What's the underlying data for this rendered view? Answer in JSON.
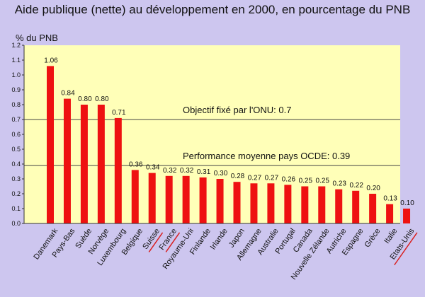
{
  "chart_data": {
    "type": "bar",
    "title": "Aide publique (nette) au développement en 2000, en pourcentage du PNB",
    "ylabel": "% du PNB",
    "xlabel": "",
    "ylim": [
      0,
      1.2
    ],
    "yticks": [
      "0.0",
      "0.1",
      "0.2",
      "0.3",
      "0.4",
      "0.5",
      "0.6",
      "0.7",
      "0.8",
      "0.9",
      "1.0",
      "1.1",
      "1.2"
    ],
    "categories": [
      "Danemark",
      "Pays-Bas",
      "Suède",
      "Norvège",
      "Luxembourg",
      "Belgique",
      "Suisse",
      "France",
      "Royaume-Uni",
      "Finlande",
      "Irlande",
      "Japon",
      "Allemagne",
      "Australie",
      "Portugal",
      "Canada",
      "Nouvelle Zélande",
      "Autriche",
      "Espagne",
      "Grèce",
      "Italie",
      "Etats-Unis"
    ],
    "underlined_categories": [
      "Suisse",
      "France",
      "Etats-Unis"
    ],
    "values": [
      1.06,
      0.84,
      0.8,
      0.8,
      0.71,
      0.36,
      0.34,
      0.32,
      0.32,
      0.31,
      0.3,
      0.28,
      0.27,
      0.27,
      0.26,
      0.25,
      0.25,
      0.23,
      0.22,
      0.2,
      0.13,
      0.1
    ],
    "value_labels": [
      "1.06",
      "0.84",
      "0.80",
      "0.80",
      "0.71",
      "0.36",
      "0.34",
      "0.32",
      "0.32",
      "0.31",
      "0.30",
      "0.28",
      "0.27",
      "0.27",
      "0.26",
      "0.25",
      "0.25",
      "0.23",
      "0.22",
      "0.20",
      "0.13",
      "0.10"
    ],
    "reference_lines": [
      {
        "value": 0.7,
        "label": "Objectif fixé par l'ONU: 0.7"
      },
      {
        "value": 0.39,
        "label": "Performance moyenne pays OCDE: 0.39"
      }
    ],
    "colors": {
      "bar": "#ee1111",
      "plot_background": "#ffffb8",
      "page_background": "#cdc6ef",
      "underline": "#d92020"
    },
    "grid": false
  }
}
